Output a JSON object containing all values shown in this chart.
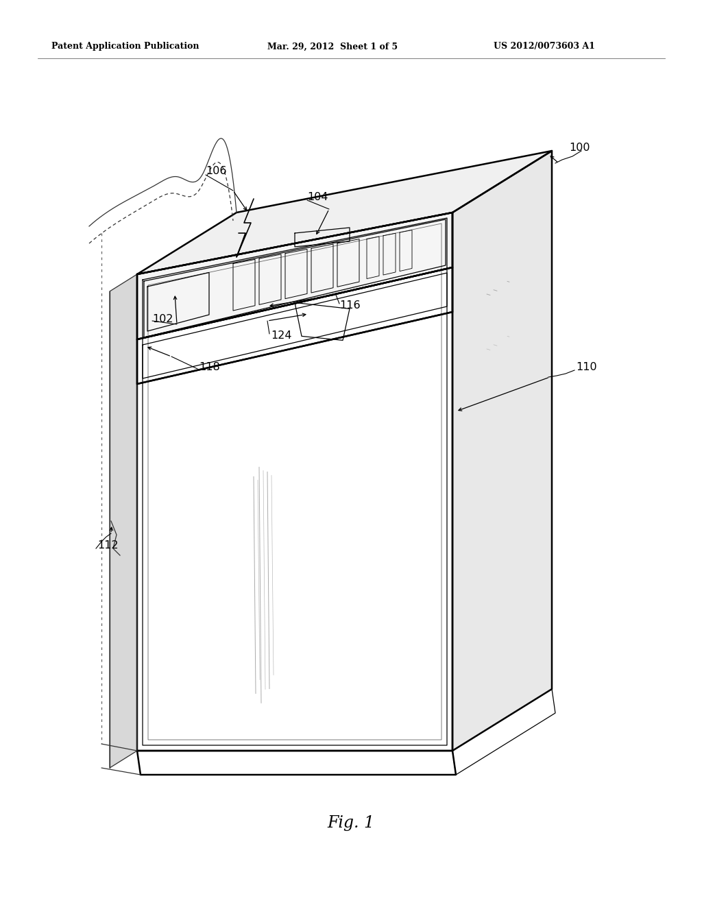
{
  "header_left": "Patent Application Publication",
  "header_mid": "Mar. 29, 2012  Sheet 1 of 5",
  "header_right": "US 2012/0073603 A1",
  "fig_label": "Fig. 1",
  "bg_color": "#ffffff",
  "line_color": "#000000",
  "ref_color": "#000000"
}
